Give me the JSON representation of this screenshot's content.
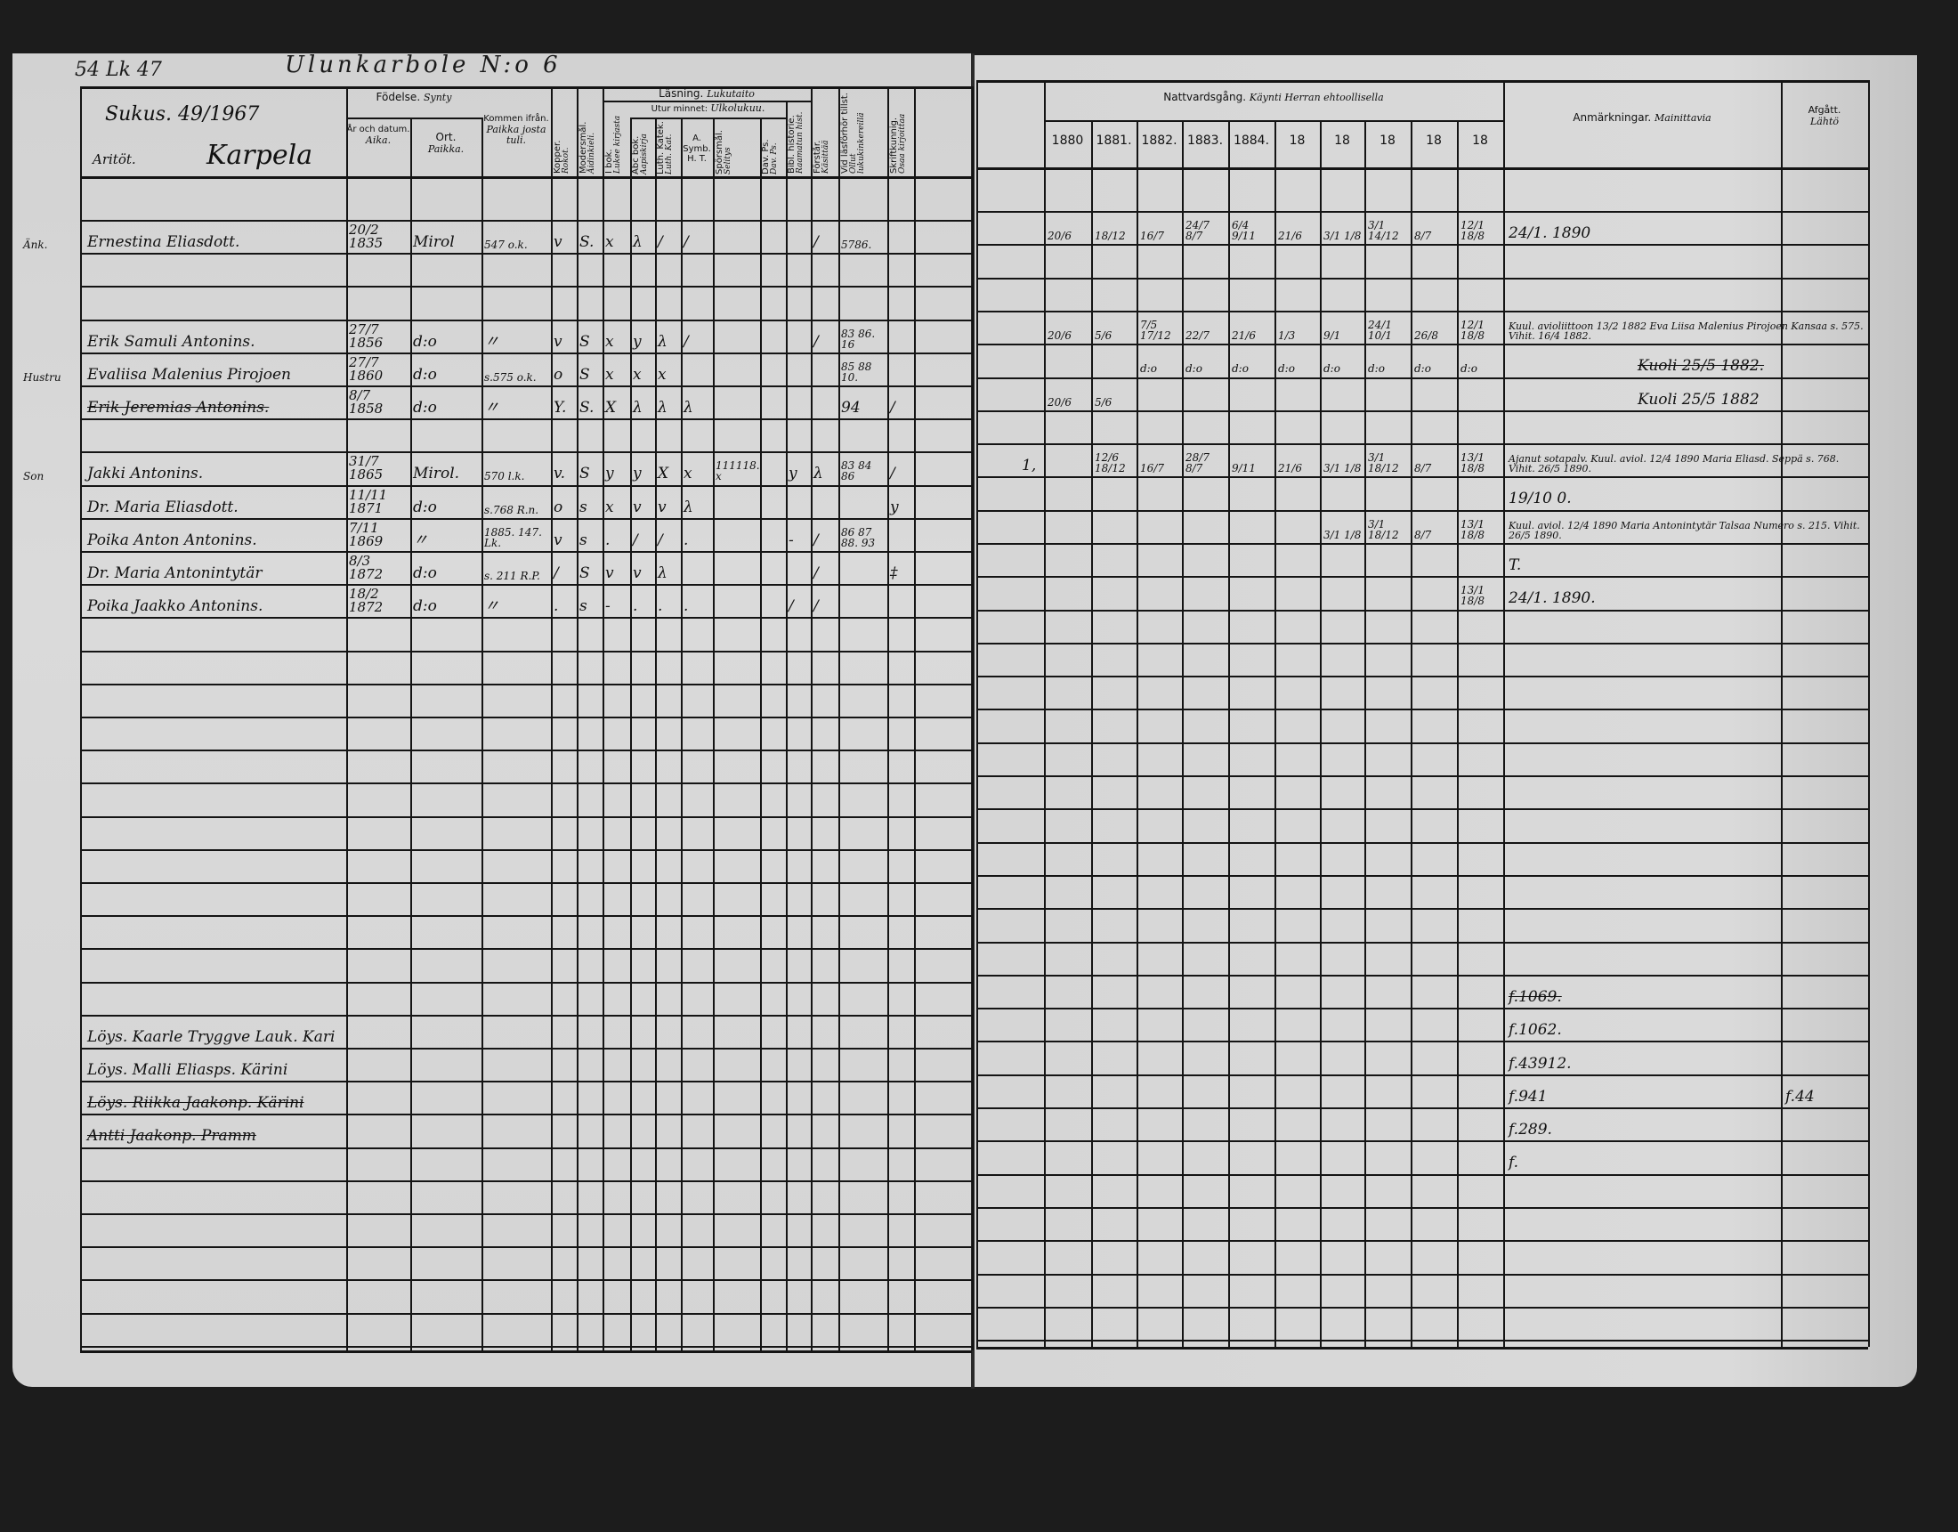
{
  "page_titles": {
    "left_ref": "54 Lk 47",
    "village": "Ulunkarbole N:o 6"
  },
  "left_header": {
    "household_ref": "Sukus. 49/1967",
    "farm_prefix": "Aritöt.",
    "farm_name": "Karpela",
    "fodelse": "Födelse.",
    "fodelse_fi": "Synty",
    "ar": "År och datum.",
    "ar_fi": "Aika.",
    "ort": "Ort.",
    "ort_fi": "Paikka.",
    "kommen": "Kommen ifrån.",
    "kommen_fi": "Paikka josta tuli.",
    "kopper": "Kopper.",
    "kopper_fi": "Rokot.",
    "modersmal": "Modersmål.",
    "modersmal_fi": "Äidinkieli.",
    "lasning": "Läsning.",
    "lasning_fi": "Lukutaito",
    "i_bok": "I bok.",
    "i_bok_fi": "Lukee kirjasta",
    "utur_minnet": "Utur minnet:",
    "utur_minnet_fi": "Ulkolukuu.",
    "abc": "Abc bok.",
    "abc_fi": "Aapiskirja",
    "luth": "Luth. Katek.",
    "luth_fi": "Luth. Kat.",
    "symb": "A. Symb. H. T.",
    "sporsmal": "Spörsmål.",
    "sporsmal_fi": "Selitys",
    "dav": "Dav. Ps.",
    "dav_fi": "Dav. Ps.",
    "bibl": "Bibl. historie.",
    "bibl_fi": "Raamatun hist.",
    "forstar": "Förstår.",
    "forstar_fi": "Käsittää",
    "lasforhor": "Vid läsförhör tillst.",
    "lasforhor_fi": "Ollut lukukinkereillä",
    "skrift": "Skriftkunnig.",
    "skrift_fi": "Osaa kirjoittaa"
  },
  "right_header": {
    "nattvard": "Nattvardsgång.",
    "nattvard_fi": "Käynti Herran ehtoollisella",
    "years": [
      "1880",
      "1881.",
      "1882.",
      "1883.",
      "1884.",
      "18",
      "18",
      "18",
      "18",
      "18"
    ],
    "anm": "Anmärkningar.",
    "anm_fi": "Mainittavia",
    "afgatt": "Afgått.",
    "afgatt_fi": "Lähtö"
  },
  "left_rows": [
    {},
    {
      "prefix": "Änk.",
      "name": "Ernestina Eliasdott.",
      "birth": "20/2 1835",
      "place": "Mirol",
      "from": "547 o.k.",
      "kopper": "v",
      "mod": "S.",
      "i_bok": "x",
      "abc": "λ",
      "luth": "/",
      "symb": "/",
      "forstar": "/",
      "lasforhor": "5786."
    },
    {},
    {},
    {
      "name": "Erik Samuli Antonins.",
      "birth": "27/7 1856",
      "place": "d:o",
      "from": "〃",
      "kopper": "v",
      "mod": "S",
      "i_bok": "x",
      "abc": "y",
      "luth": "λ",
      "symb": "/",
      "forstar": "/",
      "lasforhor": "83 86. 16"
    },
    {
      "prefix": "Hustru",
      "name": "Evaliisa Malenius Pirojoen",
      "birth": "27/7 1860",
      "place": "d:o",
      "from": "s.575 o.k.",
      "kopper": "o",
      "mod": "S",
      "i_bok": "x",
      "abc": "x",
      "luth": "x",
      "lasforhor": "85 88 10."
    },
    {
      "name": "Erik Jeremias Antonins.",
      "struck": true,
      "birth": "8/7 1858",
      "place": "d:o",
      "from": "〃",
      "kopper": "Y.",
      "mod": "S.",
      "i_bok": "X",
      "abc": "λ",
      "luth": "λ",
      "symb": "λ",
      "lasforhor": "94",
      "skrift": "/"
    },
    {},
    {
      "prefix": "Son",
      "name": "Jakki Antonins.",
      "birth": "31/7 1865",
      "place": "Mirol.",
      "from": "570 l.k.",
      "kopper": "v.",
      "mod": "S",
      "i_bok": "y",
      "abc": "y",
      "luth": "X",
      "symb": "x",
      "sporsmal": "111118. x",
      "bibl": "y",
      "forstar": "λ",
      "lasforhor": "83 84 86",
      "skrift": "/"
    },
    {
      "name": "Dr. Maria Eliasdott.",
      "birth": "11/11 1871",
      "place": "d:o",
      "from": "s.768 R.n.",
      "kopper": "o",
      "mod": "s",
      "i_bok": "x",
      "abc": "v",
      "luth": "v",
      "symb": "λ",
      "skrift": "y"
    },
    {
      "name": "Poika Anton Antonins.",
      "birth": "7/11 1869",
      "place": "〃",
      "from": "1885. 147. Lk.",
      "kopper": "v",
      "mod": "s",
      "i_bok": ".",
      "abc": "/",
      "luth": "/",
      "symb": ".",
      "bibl": "-",
      "forstar": "/",
      "lasforhor": "86 87 88. 93"
    },
    {
      "name": "Dr. Maria Antonintytär",
      "birth": "8/3 1872",
      "place": "d:o",
      "from": "s. 211 R.P.",
      "kopper": "/",
      "mod": "S",
      "i_bok": "v",
      "abc": "v",
      "luth": "λ",
      "forstar": "/",
      "skrift": "‡"
    },
    {
      "name": "Poika Jaakko Antonins.",
      "birth": "18/2 1872",
      "place": "d:o",
      "from": "〃",
      "kopper": ".",
      "mod": "s",
      "i_bok": "-",
      "abc": ".",
      "luth": ".",
      "symb": ".",
      "bibl": "/",
      "forstar": "/"
    },
    {},
    {},
    {},
    {},
    {},
    {},
    {},
    {},
    {},
    {},
    {},
    {},
    {
      "name": "Löys. Kaarle Tryggve Lauk. Kari"
    },
    {
      "name": "Löys. Malli Eliasps. Kärini"
    },
    {
      "name": "Löys. Riikka Jaakonp. Kärini",
      "struck": true
    },
    {
      "name": "Antti Jaakonp. Pramm",
      "struck": true
    },
    {},
    {},
    {},
    {},
    {},
    {}
  ],
  "right_rows": [
    {},
    {
      "y": [
        "20/6",
        "18/12",
        "16/7",
        "24/7 8/7",
        "6/4 9/11",
        "21/6",
        "3/1 1/8",
        "3/1 14/12",
        "8/7",
        "12/1 18/8"
      ],
      "notes": "24/1. 1890"
    },
    {},
    {},
    {
      "y": [
        "20/6",
        "5/6",
        "7/5 17/12",
        "22/7",
        "21/6",
        "1/3",
        "9/1",
        "24/1 10/1",
        "26/8",
        "12/1 18/8"
      ],
      "notes": "Kuul. avioliittoon 13/2 1882 Eva Liisa Malenius Pirojoen Kansaa s. 575. Vihit. 16/4 1882."
    },
    {
      "y": [
        "",
        "",
        "d:o",
        "d:o",
        "d:o",
        "d:o",
        "d:o",
        "d:o",
        "d:o",
        "d:o"
      ],
      "notes": "Kuoli 25/5 1882.",
      "notes_struck": true
    },
    {
      "y": [
        "20/6",
        "5/6"
      ],
      "notes": "Kuoli 25/5 1882"
    },
    {},
    {
      "prefix": "1,",
      "y": [
        "",
        "12/6 18/12",
        "16/7",
        "28/7 8/7",
        "9/11",
        "21/6",
        "3/1 1/8",
        "3/1 18/12",
        "8/7",
        "13/1 18/8"
      ],
      "notes": "Ajanut sotapalv. Kuul. aviol. 12/4 1890 Maria Eliasd. Seppä s. 768. Vihit. 26/5 1890."
    },
    {
      "notes": "19/10 0."
    },
    {
      "y": [
        "",
        "",
        "",
        "",
        "",
        "",
        "3/1 1/8",
        "3/1 18/12",
        "8/7",
        "13/1 18/8"
      ],
      "notes": "Kuul. aviol. 12/4 1890 Maria Antonintytär Talsaa Numero s. 215. Vihit. 26/5 1890."
    },
    {
      "notes": "T."
    },
    {
      "y": [
        "",
        "",
        "",
        "",
        "",
        "",
        "",
        "",
        "",
        "13/1 18/8"
      ],
      "notes": "24/1. 1890."
    },
    {},
    {},
    {},
    {},
    {},
    {},
    {},
    {},
    {},
    {},
    {},
    {
      "notes": "f.1069.",
      "notes_struck": true
    },
    {
      "notes": "f.1062."
    },
    {
      "notes": "f.43912."
    },
    {
      "notes": "f.941",
      "afgatt": "f.44"
    },
    {
      "notes": "f.289."
    },
    {
      "notes": "f."
    },
    {},
    {},
    {},
    {},
    {}
  ]
}
